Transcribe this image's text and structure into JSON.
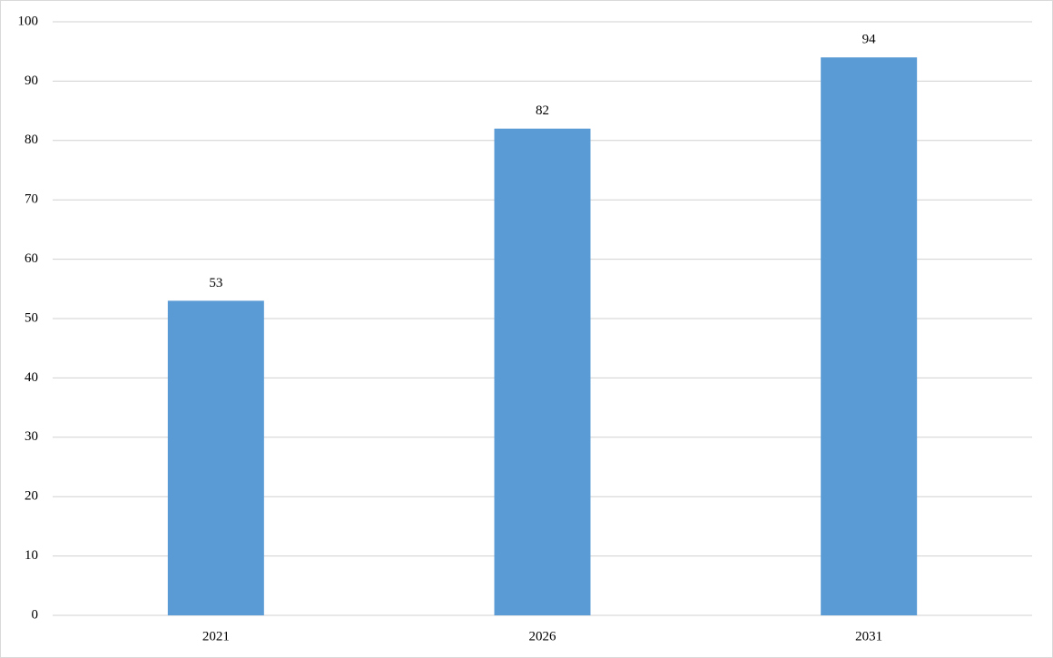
{
  "chart_data": {
    "type": "bar",
    "categories": [
      "2021",
      "2026",
      "2031"
    ],
    "values": [
      53,
      82,
      94
    ],
    "color": "#5b9bd5",
    "ylim": [
      0,
      100
    ],
    "yticks": [
      0,
      10,
      20,
      30,
      40,
      50,
      60,
      70,
      80,
      90,
      100
    ],
    "grid": true
  }
}
